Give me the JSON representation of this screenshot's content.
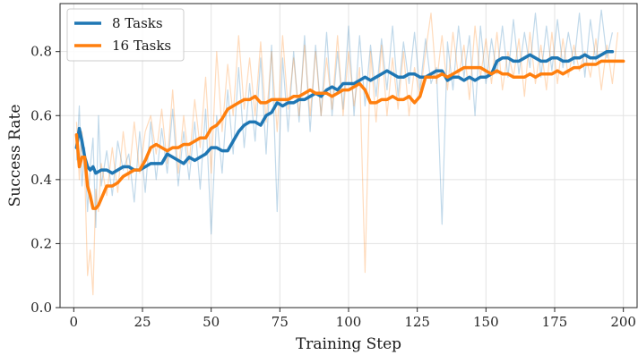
{
  "chart_data": {
    "type": "line",
    "title": "",
    "xlabel": "Training Step",
    "ylabel": "Success Rate",
    "xlim": [
      -5,
      205
    ],
    "ylim": [
      0.0,
      0.95
    ],
    "xticks": [
      0,
      25,
      50,
      75,
      100,
      125,
      150,
      175,
      200
    ],
    "xtick_labels": [
      "0",
      "25",
      "50",
      "75",
      "100",
      "125",
      "150",
      "175",
      "200"
    ],
    "yticks": [
      0.0,
      0.2,
      0.4,
      0.6,
      0.8
    ],
    "ytick_labels": [
      "0.0",
      "0.2",
      "0.4",
      "0.6",
      "0.8"
    ],
    "grid": true,
    "legend_position": "top-left",
    "series": [
      {
        "name": "8 Tasks",
        "color": "#1f77b4",
        "smoothed": {
          "x": [
            1,
            2,
            3,
            4,
            5,
            6,
            7,
            8,
            10,
            12,
            14,
            16,
            18,
            20,
            22,
            24,
            26,
            28,
            30,
            32,
            34,
            36,
            38,
            40,
            42,
            44,
            46,
            48,
            50,
            52,
            54,
            56,
            58,
            60,
            62,
            64,
            66,
            68,
            70,
            72,
            74,
            76,
            78,
            80,
            82,
            84,
            86,
            88,
            90,
            92,
            94,
            96,
            98,
            100,
            102,
            104,
            106,
            108,
            110,
            112,
            114,
            116,
            118,
            120,
            122,
            124,
            126,
            128,
            130,
            132,
            134,
            136,
            138,
            140,
            142,
            144,
            146,
            148,
            150,
            152,
            154,
            156,
            158,
            160,
            162,
            164,
            166,
            168,
            170,
            172,
            174,
            176,
            178,
            180,
            182,
            184,
            186,
            188,
            190,
            192,
            194,
            196
          ],
          "y": [
            0.5,
            0.56,
            0.52,
            0.47,
            0.44,
            0.43,
            0.44,
            0.42,
            0.43,
            0.43,
            0.42,
            0.43,
            0.44,
            0.44,
            0.43,
            0.43,
            0.44,
            0.45,
            0.45,
            0.45,
            0.48,
            0.47,
            0.46,
            0.45,
            0.47,
            0.46,
            0.47,
            0.48,
            0.5,
            0.5,
            0.49,
            0.49,
            0.52,
            0.55,
            0.57,
            0.58,
            0.58,
            0.57,
            0.6,
            0.61,
            0.64,
            0.63,
            0.64,
            0.64,
            0.65,
            0.65,
            0.66,
            0.67,
            0.66,
            0.68,
            0.69,
            0.68,
            0.7,
            0.7,
            0.7,
            0.71,
            0.72,
            0.71,
            0.72,
            0.73,
            0.74,
            0.73,
            0.72,
            0.72,
            0.73,
            0.73,
            0.72,
            0.72,
            0.73,
            0.74,
            0.74,
            0.71,
            0.72,
            0.72,
            0.71,
            0.72,
            0.71,
            0.72,
            0.72,
            0.73,
            0.77,
            0.78,
            0.78,
            0.77,
            0.77,
            0.78,
            0.79,
            0.78,
            0.77,
            0.77,
            0.78,
            0.78,
            0.77,
            0.77,
            0.78,
            0.78,
            0.79,
            0.78,
            0.78,
            0.79,
            0.8,
            0.8
          ]
        },
        "raw": {
          "x": [
            1,
            2,
            3,
            4,
            5,
            6,
            7,
            8,
            9,
            10,
            12,
            14,
            16,
            18,
            20,
            22,
            24,
            26,
            28,
            30,
            32,
            34,
            36,
            38,
            40,
            42,
            44,
            46,
            48,
            50,
            52,
            54,
            56,
            58,
            60,
            62,
            64,
            66,
            68,
            70,
            72,
            74,
            76,
            78,
            80,
            82,
            84,
            86,
            88,
            90,
            92,
            94,
            96,
            98,
            100,
            102,
            104,
            106,
            108,
            110,
            112,
            114,
            116,
            118,
            120,
            122,
            124,
            126,
            128,
            130,
            132,
            134,
            136,
            138,
            140,
            142,
            144,
            146,
            148,
            150,
            152,
            154,
            156,
            158,
            160,
            162,
            164,
            166,
            168,
            170,
            172,
            174,
            176,
            178,
            180,
            182,
            184,
            186,
            188,
            190,
            192,
            194,
            196
          ],
          "y": [
            0.46,
            0.63,
            0.38,
            0.5,
            0.3,
            0.44,
            0.53,
            0.25,
            0.6,
            0.38,
            0.49,
            0.35,
            0.52,
            0.43,
            0.48,
            0.33,
            0.55,
            0.36,
            0.58,
            0.4,
            0.56,
            0.42,
            0.62,
            0.38,
            0.55,
            0.4,
            0.58,
            0.37,
            0.62,
            0.23,
            0.6,
            0.42,
            0.68,
            0.48,
            0.75,
            0.5,
            0.7,
            0.52,
            0.78,
            0.48,
            0.82,
            0.3,
            0.78,
            0.55,
            0.8,
            0.58,
            0.85,
            0.55,
            0.82,
            0.6,
            0.86,
            0.6,
            0.8,
            0.62,
            0.88,
            0.6,
            0.85,
            0.63,
            0.82,
            0.66,
            0.84,
            0.68,
            0.88,
            0.66,
            0.83,
            0.7,
            0.86,
            0.68,
            0.84,
            0.7,
            0.75,
            0.26,
            0.83,
            0.68,
            0.88,
            0.72,
            0.85,
            0.6,
            0.88,
            0.7,
            0.84,
            0.73,
            0.88,
            0.72,
            0.9,
            0.73,
            0.86,
            0.75,
            0.92,
            0.72,
            0.88,
            0.74,
            0.9,
            0.75,
            0.86,
            0.76,
            0.92,
            0.72,
            0.9,
            0.77,
            0.93,
            0.78,
            0.86
          ]
        }
      },
      {
        "name": "16 Tasks",
        "color": "#ff7f0e",
        "smoothed": {
          "x": [
            1,
            2,
            3,
            4,
            5,
            6,
            7,
            8,
            9,
            10,
            12,
            14,
            16,
            18,
            20,
            22,
            24,
            26,
            28,
            30,
            32,
            34,
            36,
            38,
            40,
            42,
            44,
            46,
            48,
            50,
            52,
            54,
            56,
            58,
            60,
            62,
            64,
            66,
            68,
            70,
            72,
            74,
            76,
            78,
            80,
            82,
            84,
            86,
            88,
            90,
            92,
            94,
            96,
            98,
            100,
            102,
            104,
            106,
            108,
            110,
            112,
            114,
            116,
            118,
            120,
            122,
            124,
            126,
            128,
            130,
            132,
            134,
            136,
            138,
            140,
            142,
            144,
            146,
            148,
            150,
            152,
            154,
            156,
            158,
            160,
            162,
            164,
            166,
            168,
            170,
            172,
            174,
            176,
            178,
            180,
            182,
            184,
            186,
            188,
            190,
            192,
            194,
            196,
            198,
            200
          ],
          "y": [
            0.54,
            0.44,
            0.47,
            0.47,
            0.38,
            0.35,
            0.31,
            0.31,
            0.32,
            0.34,
            0.38,
            0.38,
            0.39,
            0.41,
            0.42,
            0.43,
            0.43,
            0.46,
            0.5,
            0.51,
            0.5,
            0.49,
            0.5,
            0.5,
            0.51,
            0.51,
            0.52,
            0.53,
            0.53,
            0.56,
            0.57,
            0.59,
            0.62,
            0.63,
            0.64,
            0.65,
            0.65,
            0.66,
            0.64,
            0.64,
            0.65,
            0.65,
            0.65,
            0.65,
            0.66,
            0.66,
            0.67,
            0.68,
            0.67,
            0.67,
            0.67,
            0.66,
            0.67,
            0.68,
            0.68,
            0.69,
            0.7,
            0.68,
            0.64,
            0.64,
            0.65,
            0.65,
            0.66,
            0.65,
            0.65,
            0.66,
            0.64,
            0.66,
            0.72,
            0.72,
            0.72,
            0.73,
            0.72,
            0.73,
            0.74,
            0.75,
            0.75,
            0.75,
            0.75,
            0.74,
            0.73,
            0.74,
            0.73,
            0.73,
            0.72,
            0.72,
            0.72,
            0.73,
            0.72,
            0.73,
            0.73,
            0.73,
            0.74,
            0.73,
            0.74,
            0.75,
            0.75,
            0.76,
            0.76,
            0.76,
            0.77,
            0.77,
            0.77,
            0.77,
            0.77
          ]
        },
        "raw": {
          "x": [
            1,
            2,
            3,
            4,
            5,
            6,
            7,
            8,
            9,
            10,
            12,
            14,
            16,
            18,
            20,
            22,
            24,
            26,
            28,
            30,
            32,
            34,
            36,
            38,
            40,
            42,
            44,
            46,
            48,
            50,
            52,
            54,
            56,
            58,
            60,
            62,
            64,
            66,
            68,
            70,
            72,
            74,
            76,
            78,
            80,
            82,
            84,
            86,
            88,
            90,
            92,
            94,
            96,
            98,
            100,
            102,
            104,
            106,
            108,
            110,
            112,
            114,
            116,
            118,
            120,
            122,
            124,
            126,
            128,
            130,
            132,
            134,
            136,
            138,
            140,
            142,
            144,
            146,
            148,
            150,
            152,
            154,
            156,
            158,
            160,
            162,
            164,
            166,
            168,
            170,
            172,
            174,
            176,
            178,
            180,
            182,
            184,
            186,
            188,
            190,
            192,
            194,
            196,
            198
          ],
          "y": [
            0.58,
            0.4,
            0.55,
            0.42,
            0.1,
            0.18,
            0.04,
            0.37,
            0.3,
            0.45,
            0.35,
            0.5,
            0.36,
            0.55,
            0.4,
            0.58,
            0.42,
            0.55,
            0.6,
            0.48,
            0.62,
            0.45,
            0.68,
            0.42,
            0.6,
            0.45,
            0.65,
            0.5,
            0.72,
            0.42,
            0.8,
            0.55,
            0.76,
            0.6,
            0.85,
            0.62,
            0.78,
            0.6,
            0.83,
            0.58,
            0.8,
            0.55,
            0.85,
            0.62,
            0.78,
            0.6,
            0.82,
            0.6,
            0.8,
            0.6,
            0.78,
            0.62,
            0.85,
            0.6,
            0.8,
            0.63,
            0.75,
            0.11,
            0.8,
            0.58,
            0.82,
            0.6,
            0.78,
            0.62,
            0.8,
            0.6,
            0.75,
            0.66,
            0.8,
            0.92,
            0.7,
            0.85,
            0.68,
            0.86,
            0.72,
            0.82,
            0.65,
            0.88,
            0.72,
            0.84,
            0.7,
            0.86,
            0.68,
            0.8,
            0.72,
            0.84,
            0.66,
            0.86,
            0.7,
            0.82,
            0.68,
            0.86,
            0.7,
            0.84,
            0.72,
            0.82,
            0.74,
            0.8,
            0.72,
            0.84,
            0.68,
            0.82,
            0.7,
            0.86
          ]
        }
      }
    ]
  }
}
